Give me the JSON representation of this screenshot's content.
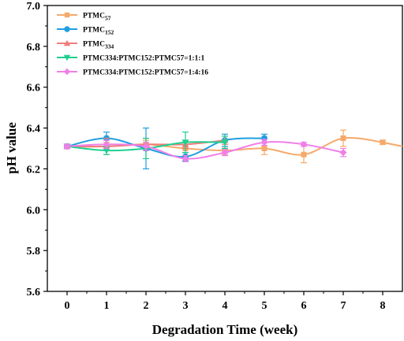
{
  "chart_data": {
    "type": "line",
    "title": "",
    "xlabel": "Degradation Time (week)",
    "ylabel": "pH value",
    "xlim": [
      -0.5,
      8.5
    ],
    "ylim": [
      5.6,
      7.0
    ],
    "xticks": [
      0,
      1,
      2,
      3,
      4,
      5,
      6,
      7,
      8
    ],
    "yticks": [
      5.6,
      5.8,
      6.0,
      6.2,
      6.4,
      6.6,
      6.8,
      7.0
    ],
    "ytick_labels": [
      "5.6",
      "5.8",
      "6.0",
      "6.2",
      "6.4",
      "6.6",
      "6.8",
      "7.0"
    ],
    "grid": false,
    "legend_position": "top-left",
    "series": [
      {
        "name": "PTMC",
        "name_sub": "57",
        "color": "#f5a96b",
        "marker": "square",
        "x": [
          0,
          1,
          2,
          3,
          4,
          5,
          6,
          7,
          8
        ],
        "y": [
          6.31,
          6.31,
          6.32,
          6.3,
          6.29,
          6.3,
          6.27,
          6.35,
          6.33
        ],
        "err": [
          0.01,
          0.02,
          0.02,
          0.02,
          0.02,
          0.03,
          0.04,
          0.04,
          0.01
        ]
      },
      {
        "name": "PTMC",
        "name_sub": "152",
        "color": "#1f9fe0",
        "marker": "circle",
        "x": [
          0,
          1,
          2,
          3,
          4,
          5
        ],
        "y": [
          6.31,
          6.35,
          6.3,
          6.26,
          6.34,
          6.35
        ],
        "err": [
          0.01,
          0.03,
          0.1,
          0.02,
          0.03,
          0.02
        ]
      },
      {
        "name": "PTMC",
        "name_sub": "334",
        "color": "#f07d7d",
        "marker": "triangle-up",
        "x": [
          0,
          1,
          2,
          3,
          4
        ],
        "y": [
          6.31,
          6.31,
          6.32,
          6.32,
          6.34
        ],
        "err": [
          0.01,
          0.04,
          0.03,
          0.02,
          0.02
        ]
      },
      {
        "name": "PTMC334:PTMC152:PTMC57=1:1:1",
        "name_sub": "",
        "color": "#1fcf8f",
        "marker": "triangle-down",
        "x": [
          0,
          1,
          2,
          3,
          4
        ],
        "y": [
          6.31,
          6.29,
          6.3,
          6.33,
          6.33
        ],
        "err": [
          0.01,
          0.02,
          0.05,
          0.05,
          0.03
        ]
      },
      {
        "name": "PTMC334:PTMC152:PTMC57=1:4:16",
        "name_sub": "",
        "color": "#f07fe8",
        "marker": "diamond",
        "x": [
          0,
          1,
          2,
          3,
          4,
          5,
          6,
          7
        ],
        "y": [
          6.31,
          6.32,
          6.31,
          6.25,
          6.28,
          6.33,
          6.32,
          6.28
        ],
        "err": [
          0.01,
          0.02,
          0.02,
          0.015,
          0.015,
          0.015,
          0.01,
          0.02
        ]
      }
    ]
  }
}
